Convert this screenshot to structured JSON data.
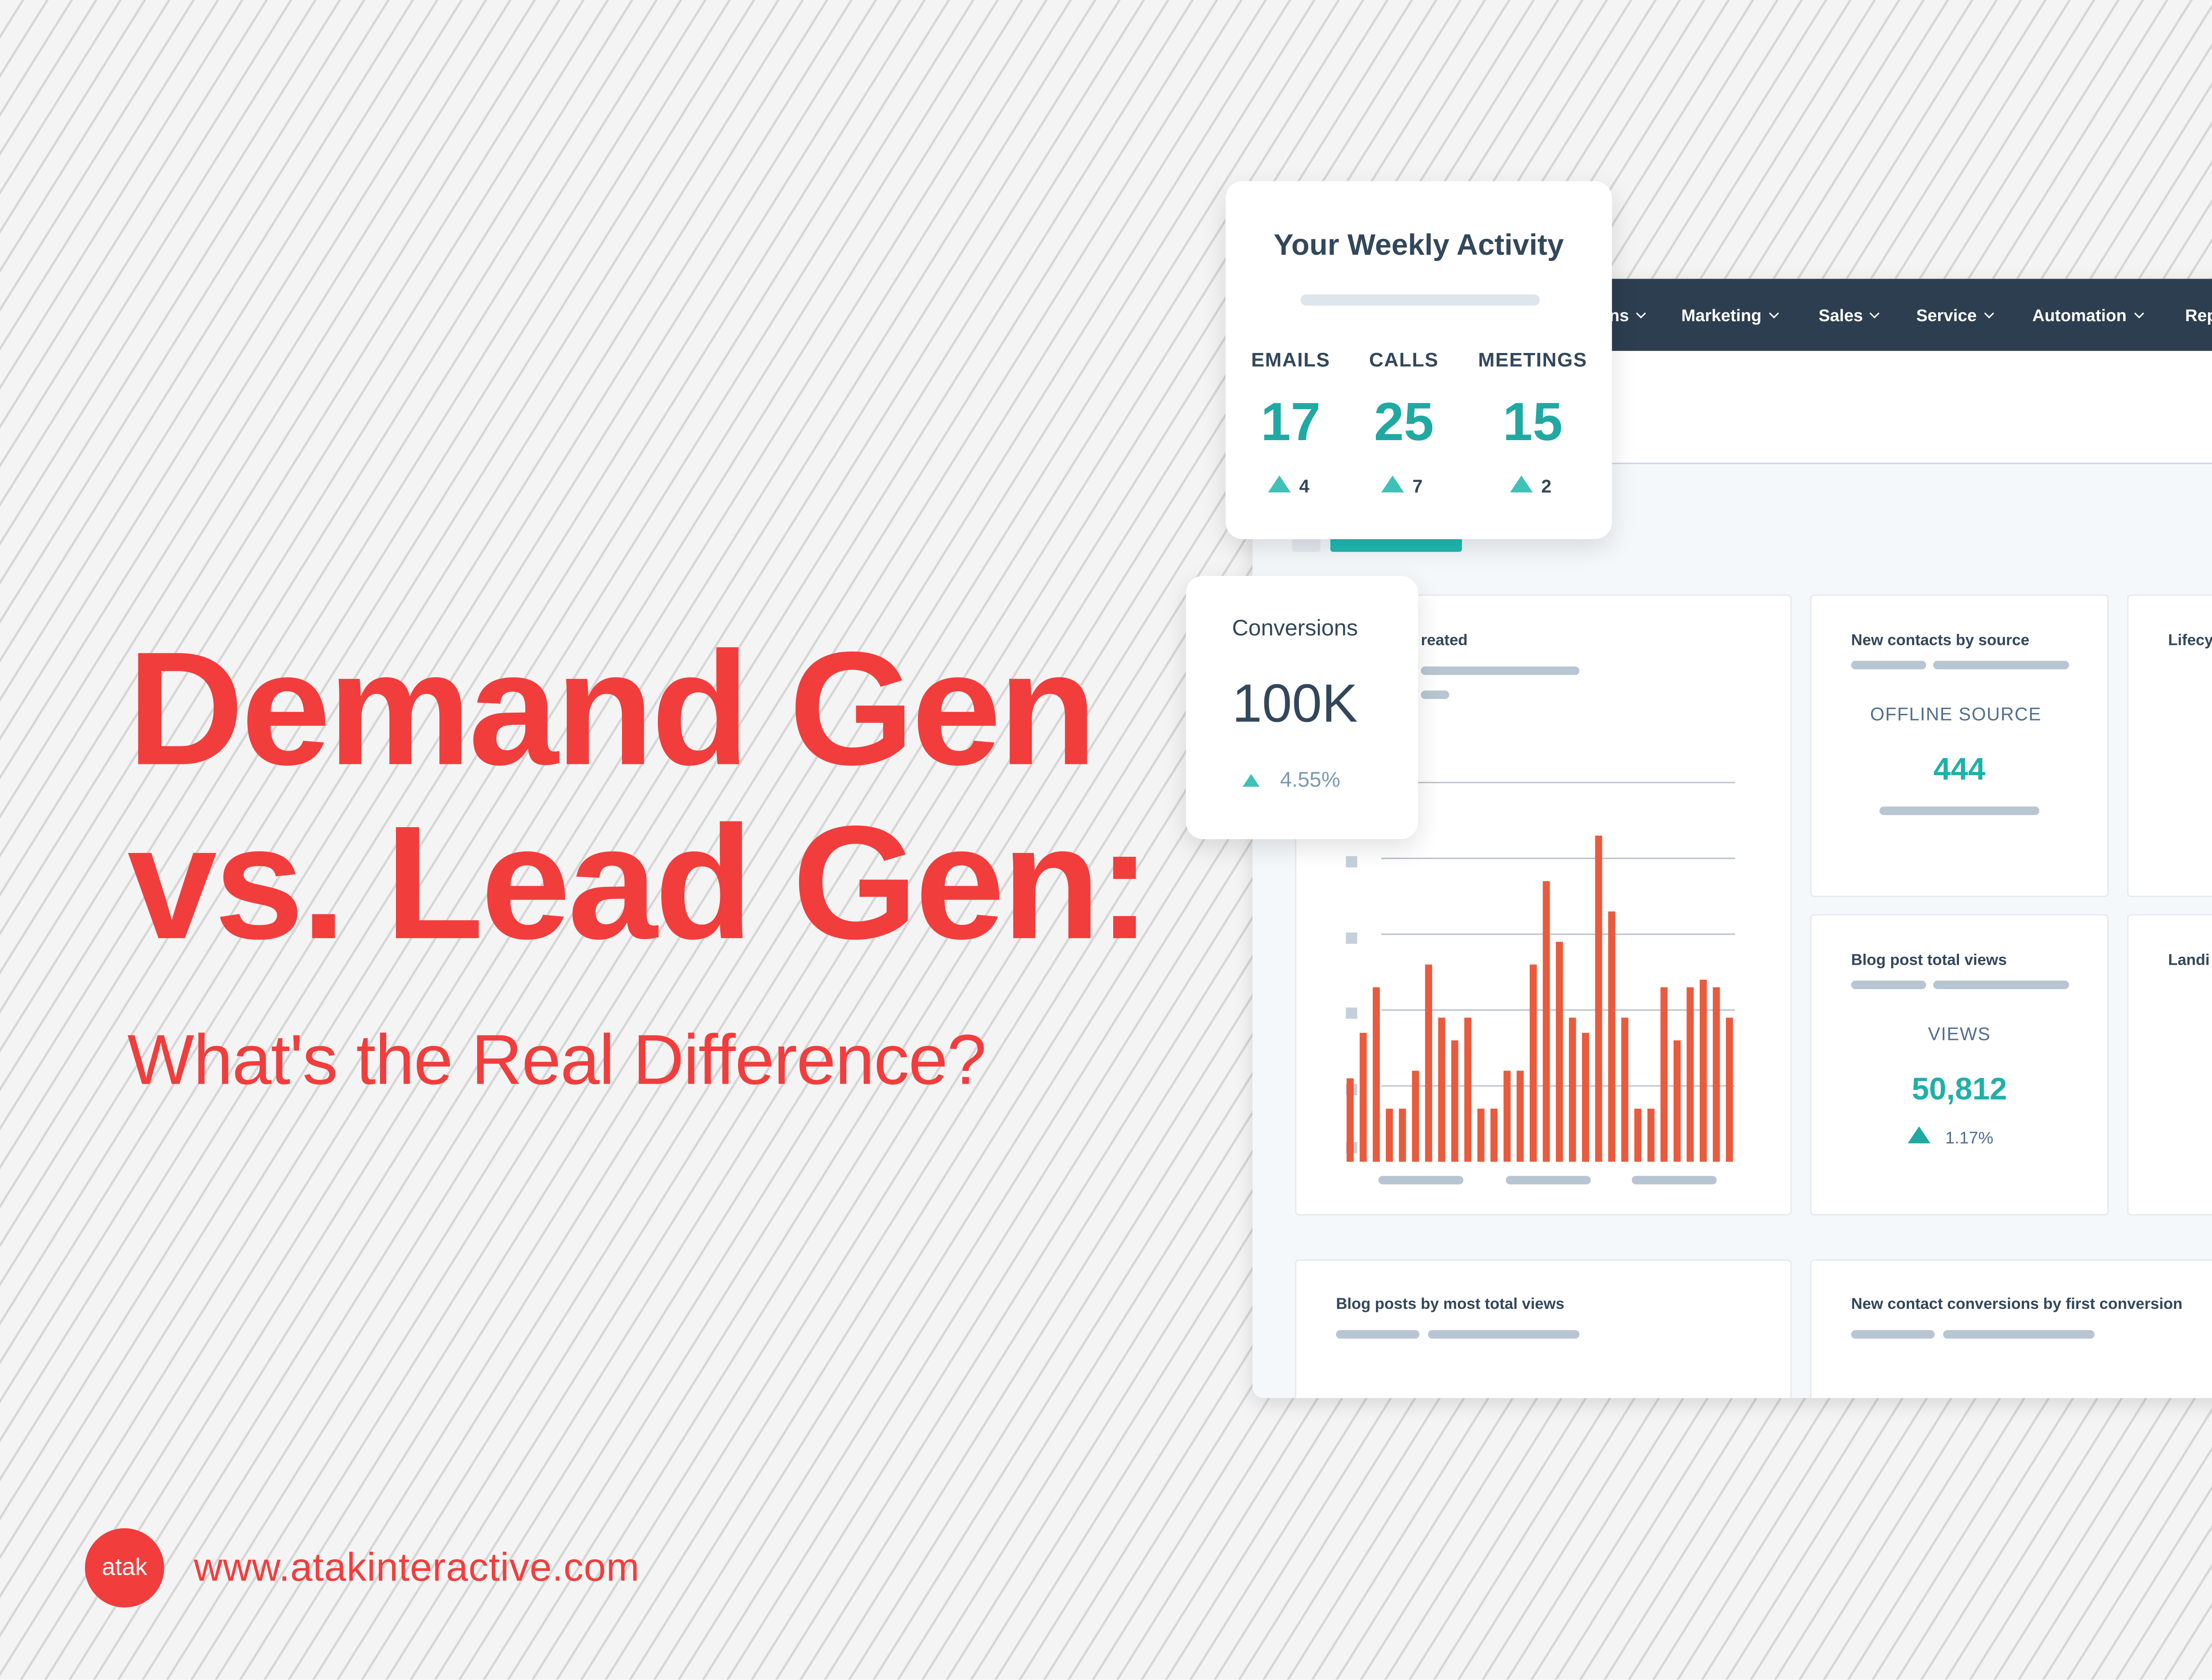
{
  "title": {
    "line1": "Demand Gen",
    "line2": "vs. Lead Gen:",
    "subtitle": "What's the Real Difference?"
  },
  "footer": {
    "logo": "atak",
    "url": "www.atakinteractive.com"
  },
  "weekly_card": {
    "title": "Your Weekly Activity",
    "metrics": [
      {
        "label": "EMAILS",
        "value": "17",
        "change": "4"
      },
      {
        "label": "CALLS",
        "value": "25",
        "change": "7"
      },
      {
        "label": "MEETINGS",
        "value": "15",
        "change": "2"
      }
    ]
  },
  "conversions_card": {
    "label": "Conversions",
    "value": "100K",
    "change": "4.55%"
  },
  "dashboard": {
    "nav": [
      "ns",
      "Marketing",
      "Sales",
      "Service",
      "Automation",
      "Rep"
    ],
    "chart_panel": {
      "title": "reated"
    },
    "contacts_panel": {
      "title": "New contacts by source",
      "label": "OFFLINE SOURCE",
      "value": "444"
    },
    "lifecycle_panel": {
      "title": "Lifecy"
    },
    "blog_views_panel": {
      "title": "Blog post total views",
      "label": "VIEWS",
      "value": "50,812",
      "change": "1.17%"
    },
    "landing_panel": {
      "title": "Landi"
    },
    "blog_posts_panel": {
      "title": "Blog posts by most total views"
    },
    "conversions_panel": {
      "title": "New contact conversions by first conversion"
    },
    "chart": {
      "type": "bar",
      "color": "#ea5a3d",
      "ylim": [
        0,
        5
      ],
      "yticks": [
        1,
        2,
        3,
        4,
        5
      ],
      "grid": true,
      "values": [
        1.1,
        1.7,
        2.3,
        0.7,
        0.7,
        1.2,
        2.6,
        1.9,
        1.6,
        1.9,
        0.7,
        0.7,
        1.2,
        1.2,
        2.6,
        3.7,
        2.9,
        1.9,
        1.7,
        4.3,
        3.3,
        1.9,
        0.7,
        0.7,
        2.3,
        1.6,
        2.3,
        2.4,
        2.3,
        1.9
      ]
    }
  }
}
